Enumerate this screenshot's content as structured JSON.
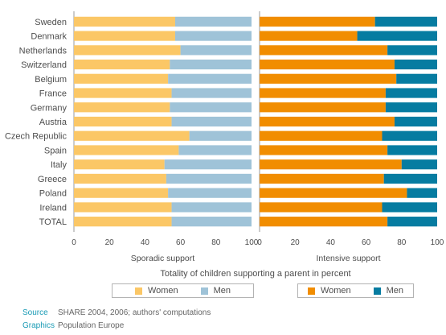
{
  "chart_data": {
    "type": "bar",
    "orientation": "horizontal",
    "stacked": true,
    "xlabel": "Totality of children supporting a parent in percent",
    "categories": [
      "Sweden",
      "Denmark",
      "Netherlands",
      "Switzerland",
      "Belgium",
      "France",
      "Germany",
      "Austria",
      "Czech Republic",
      "Spain",
      "Italy",
      "Greece",
      "Poland",
      "Ireland",
      "TOTAL"
    ],
    "xticks": [
      "0",
      "20",
      "40",
      "60",
      "80",
      "100"
    ],
    "xlim": [
      0,
      100
    ],
    "panels": [
      {
        "title": "Sporadic support",
        "series": [
          {
            "name": "Women",
            "color": "#fbc766",
            "values": [
              57,
              57,
              60,
              54,
              53,
              55,
              54,
              55,
              65,
              59,
              51,
              52,
              53,
              55,
              55
            ]
          },
          {
            "name": "Men",
            "color": "#9fc3d8",
            "values": [
              43,
              43,
              40,
              46,
              47,
              45,
              46,
              45,
              35,
              41,
              49,
              48,
              47,
              45,
              45
            ]
          }
        ]
      },
      {
        "title": "Intensive support",
        "series": [
          {
            "name": "Women",
            "color": "#f18d00",
            "values": [
              65,
              55,
              72,
              76,
              77,
              71,
              71,
              76,
              69,
              72,
              80,
              70,
              83,
              69,
              72
            ]
          },
          {
            "name": "Men",
            "color": "#067ca1",
            "values": [
              35,
              45,
              28,
              24,
              23,
              29,
              29,
              24,
              31,
              28,
              20,
              30,
              17,
              31,
              28
            ]
          }
        ]
      }
    ]
  },
  "footer": {
    "source_label": "Source",
    "source_text": "SHARE 2004, 2006; authors' computations",
    "graphics_label": "Graphics",
    "graphics_text": "Population Europe"
  }
}
